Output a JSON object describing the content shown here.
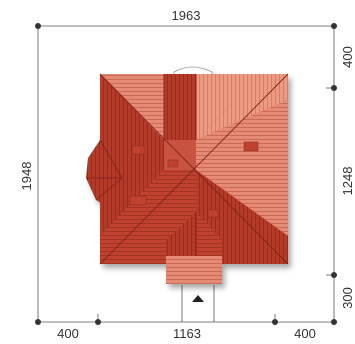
{
  "dimensions": {
    "top_width": "1963",
    "left_height": "1948",
    "right_top": "400",
    "right_middle": "1248",
    "right_bottom": "300",
    "bottom_left": "400",
    "bottom_center": "1163",
    "bottom_right": "400"
  },
  "colors": {
    "roof_dark": "#b33a2c",
    "roof_mid": "#c8523f",
    "roof_light": "#e58a74",
    "roof_pale": "#f0a48e",
    "dimension_line": "#555555",
    "text": "#333333"
  }
}
